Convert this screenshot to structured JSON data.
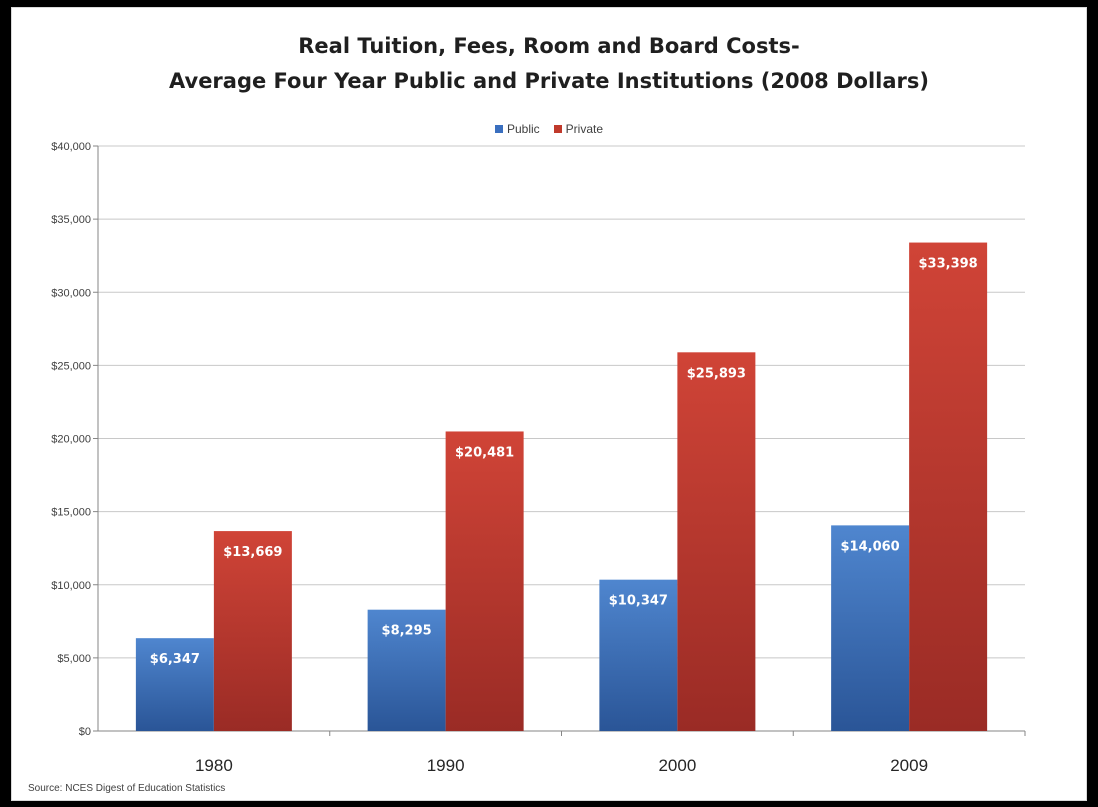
{
  "chart_data": {
    "type": "bar",
    "title_line1": "Real Tuition, Fees, Room and Board Costs-",
    "title_line2": "Average Four Year Public and Private Institutions (2008 Dollars)",
    "categories": [
      "1980",
      "1990",
      "2000",
      "2009"
    ],
    "series": [
      {
        "name": "Public",
        "values": [
          6347,
          8295,
          10347,
          14060
        ],
        "labels": [
          "$6,347",
          "$8,295",
          "$10,347",
          "$14,060"
        ],
        "color": "#3a6fbf",
        "color_light": "#4f86cf",
        "color_dark": "#2a5597"
      },
      {
        "name": "Private",
        "values": [
          13669,
          20481,
          25893,
          33398
        ],
        "labels": [
          "$13,669",
          "$20,481",
          "$25,893",
          "$33,398"
        ],
        "color": "#c0392b",
        "color_light": "#d04437",
        "color_dark": "#9a2b25"
      }
    ],
    "ylim": [
      0,
      40000
    ],
    "yticks": [
      0,
      5000,
      10000,
      15000,
      20000,
      25000,
      30000,
      35000,
      40000
    ],
    "ytick_labels": [
      "$0",
      "$5,000",
      "$10,000",
      "$15,000",
      "$20,000",
      "$25,000",
      "$30,000",
      "$35,000",
      "$40,000"
    ],
    "grid": true,
    "legend_position": "top",
    "source": "Source: NCES Digest of Education Statistics"
  }
}
